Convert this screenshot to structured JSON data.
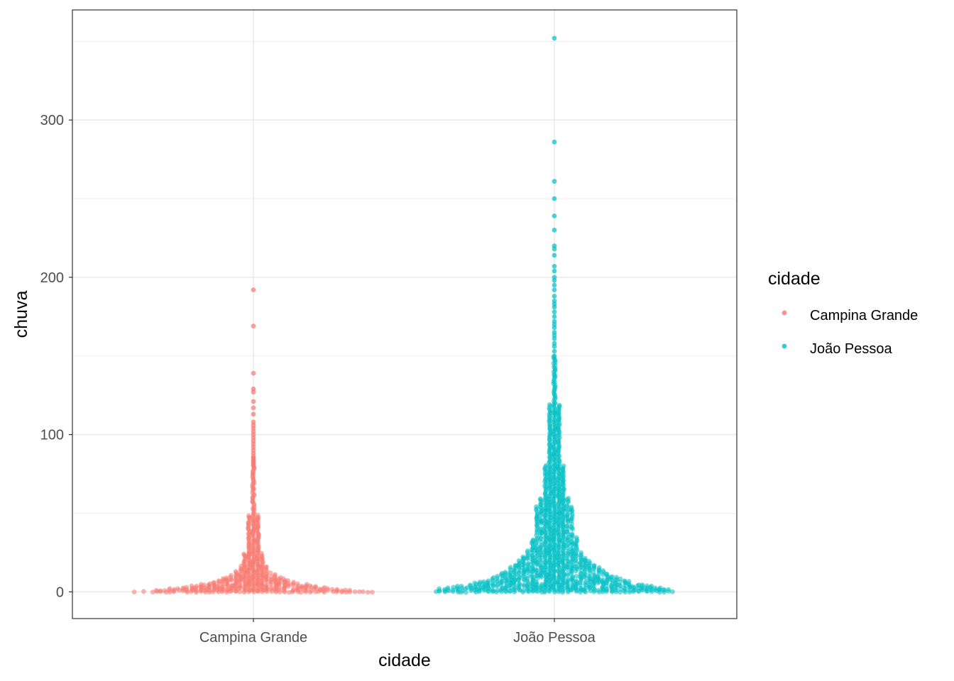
{
  "chart_data": {
    "type": "scatter",
    "subtype": "beeswarm",
    "title": "",
    "xlabel": "cidade",
    "ylabel": "chuva",
    "categories": [
      "Campina Grande",
      "João Pessoa"
    ],
    "ylim": [
      -17,
      370
    ],
    "yticks": [
      0,
      100,
      200,
      300
    ],
    "grid": true,
    "legend": {
      "title": "cidade",
      "position": "right",
      "entries": [
        "Campina Grande",
        "João Pessoa"
      ]
    },
    "colors": {
      "Campina Grande": "#F8766D",
      "João Pessoa": "#00BFC4"
    },
    "series": [
      {
        "name": "Campina Grande",
        "max": 192,
        "outliers": [
          192,
          169,
          139,
          129,
          127,
          121,
          117,
          113,
          108,
          106,
          104,
          102,
          100,
          98,
          96,
          94,
          92,
          90,
          88,
          86,
          85,
          84,
          83,
          82,
          81,
          80
        ],
        "density": [
          [
            0,
            75
          ],
          [
            1,
            60
          ],
          [
            2,
            48
          ],
          [
            3,
            40
          ],
          [
            4,
            32
          ],
          [
            5,
            27
          ],
          [
            6,
            22
          ],
          [
            8,
            16
          ],
          [
            10,
            12
          ],
          [
            12,
            9
          ],
          [
            14,
            7
          ],
          [
            17,
            5.5
          ],
          [
            20,
            4.5
          ],
          [
            25,
            3.5
          ],
          [
            30,
            2.8
          ],
          [
            40,
            2.0
          ],
          [
            50,
            1.5
          ],
          [
            60,
            1.1
          ],
          [
            70,
            0.8
          ],
          [
            80,
            0.5
          ]
        ]
      },
      {
        "name": "João Pessoa",
        "max": 352,
        "outliers": [
          352,
          286,
          261,
          250,
          239,
          230,
          220,
          218,
          214,
          207,
          204,
          200,
          198,
          195,
          192,
          188,
          185,
          183,
          181,
          178,
          175,
          172,
          170,
          168,
          165,
          163,
          161,
          158,
          156,
          153,
          150
        ],
        "density": [
          [
            0,
            75
          ],
          [
            2,
            70
          ],
          [
            4,
            55
          ],
          [
            6,
            45
          ],
          [
            8,
            40
          ],
          [
            10,
            33
          ],
          [
            12,
            28
          ],
          [
            15,
            24
          ],
          [
            18,
            20
          ],
          [
            22,
            16
          ],
          [
            26,
            13
          ],
          [
            30,
            11
          ],
          [
            35,
            10
          ],
          [
            40,
            9.5
          ],
          [
            45,
            9.5
          ],
          [
            50,
            9
          ],
          [
            55,
            7.5
          ],
          [
            60,
            5.5
          ],
          [
            70,
            4.5
          ],
          [
            80,
            3.5
          ],
          [
            90,
            2.8
          ],
          [
            100,
            2.2
          ],
          [
            110,
            1.8
          ],
          [
            120,
            1.5
          ],
          [
            130,
            1.3
          ],
          [
            140,
            1.1
          ],
          [
            150,
            0.8
          ]
        ]
      }
    ]
  }
}
